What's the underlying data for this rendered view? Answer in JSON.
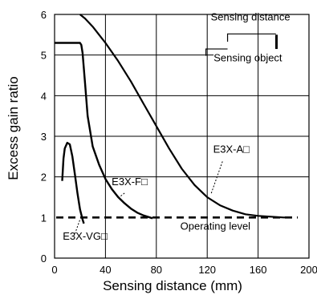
{
  "chart_data": {
    "type": "line",
    "xlabel": "Sensing distance (mm)",
    "ylabel": "Excess gain ratio",
    "xlim": [
      0,
      200
    ],
    "ylim": [
      0,
      6
    ],
    "grid": true,
    "x_ticks": [
      "0",
      "40",
      "80",
      "120",
      "160",
      "200"
    ],
    "y_ticks": [
      "1",
      "2",
      "3",
      "4",
      "5",
      "6"
    ],
    "series": [
      {
        "name": "E3X-A□",
        "x": [
          20,
          24,
          30,
          40,
          50,
          60,
          70,
          80,
          90,
          100,
          110,
          120,
          130,
          140,
          150,
          160,
          170,
          180,
          185
        ],
        "y": [
          6.0,
          5.9,
          5.7,
          5.3,
          4.85,
          4.35,
          3.8,
          3.25,
          2.7,
          2.2,
          1.8,
          1.5,
          1.3,
          1.17,
          1.08,
          1.04,
          1.02,
          1.0,
          1.0
        ]
      },
      {
        "name": "E3X-F□",
        "x": [
          0,
          20,
          21,
          22,
          24,
          26,
          30,
          35,
          40,
          45,
          50,
          55,
          60,
          65,
          70,
          75,
          77
        ],
        "y": [
          5.3,
          5.3,
          5.25,
          5.05,
          4.3,
          3.5,
          2.75,
          2.3,
          1.95,
          1.7,
          1.5,
          1.35,
          1.22,
          1.12,
          1.05,
          1.0,
          0.98
        ]
      },
      {
        "name": "E3X-VG□",
        "x": [
          6,
          7,
          8,
          10,
          12,
          14,
          16,
          18,
          20,
          22,
          23
        ],
        "y": [
          1.9,
          2.45,
          2.7,
          2.84,
          2.8,
          2.5,
          2.05,
          1.6,
          1.2,
          0.95,
          0.85
        ]
      }
    ],
    "operating_level": {
      "y": 1,
      "label": "Operating level"
    },
    "inset": {
      "top_label": "Sensing distance",
      "bottom_label": "Sensing object"
    }
  }
}
